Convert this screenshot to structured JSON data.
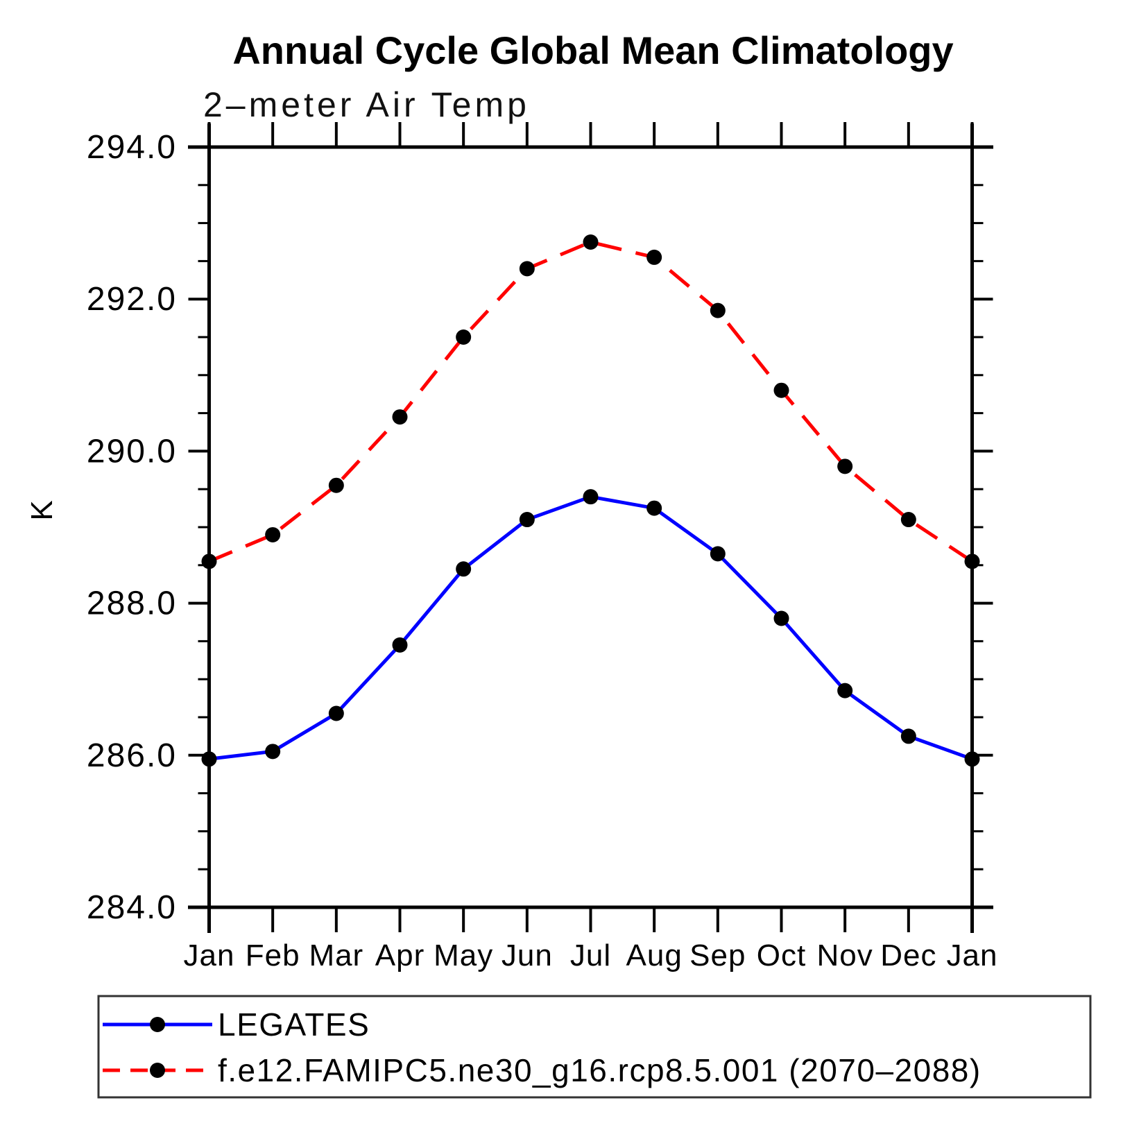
{
  "chart_data": {
    "type": "line",
    "title": "Annual Cycle Global Mean Climatology",
    "subtitle": "2–meter Air Temp",
    "ylabel": "K",
    "xlabel": "",
    "grid": false,
    "legend_position": "bottom-left-box",
    "categories": [
      "Jan",
      "Feb",
      "Mar",
      "Apr",
      "May",
      "Jun",
      "Jul",
      "Aug",
      "Sep",
      "Oct",
      "Nov",
      "Dec",
      "Jan"
    ],
    "ylim": [
      284.0,
      294.0
    ],
    "ytick_major_step": 2.0,
    "ytick_minor_step": 0.5,
    "ytick_labels": [
      "284.0",
      "286.0",
      "288.0",
      "290.0",
      "292.0",
      "294.0"
    ],
    "series": [
      {
        "name": "LEGATES",
        "color": "#0000ff",
        "line_style": "solid",
        "marker": "filled-circle",
        "marker_color": "#000000",
        "values": [
          285.95,
          286.05,
          286.55,
          287.45,
          288.45,
          289.1,
          289.4,
          289.25,
          288.65,
          287.8,
          286.85,
          286.25,
          285.95
        ]
      },
      {
        "name": "f.e12.FAMIPC5.ne30_g16.rcp8.5.001 (2070–2088)",
        "color": "#ff0000",
        "line_style": "dashed",
        "marker": "filled-circle",
        "marker_color": "#000000",
        "values": [
          288.55,
          288.9,
          289.55,
          290.45,
          291.5,
          292.4,
          292.75,
          292.55,
          291.85,
          290.8,
          289.8,
          289.1,
          288.55
        ]
      }
    ]
  }
}
